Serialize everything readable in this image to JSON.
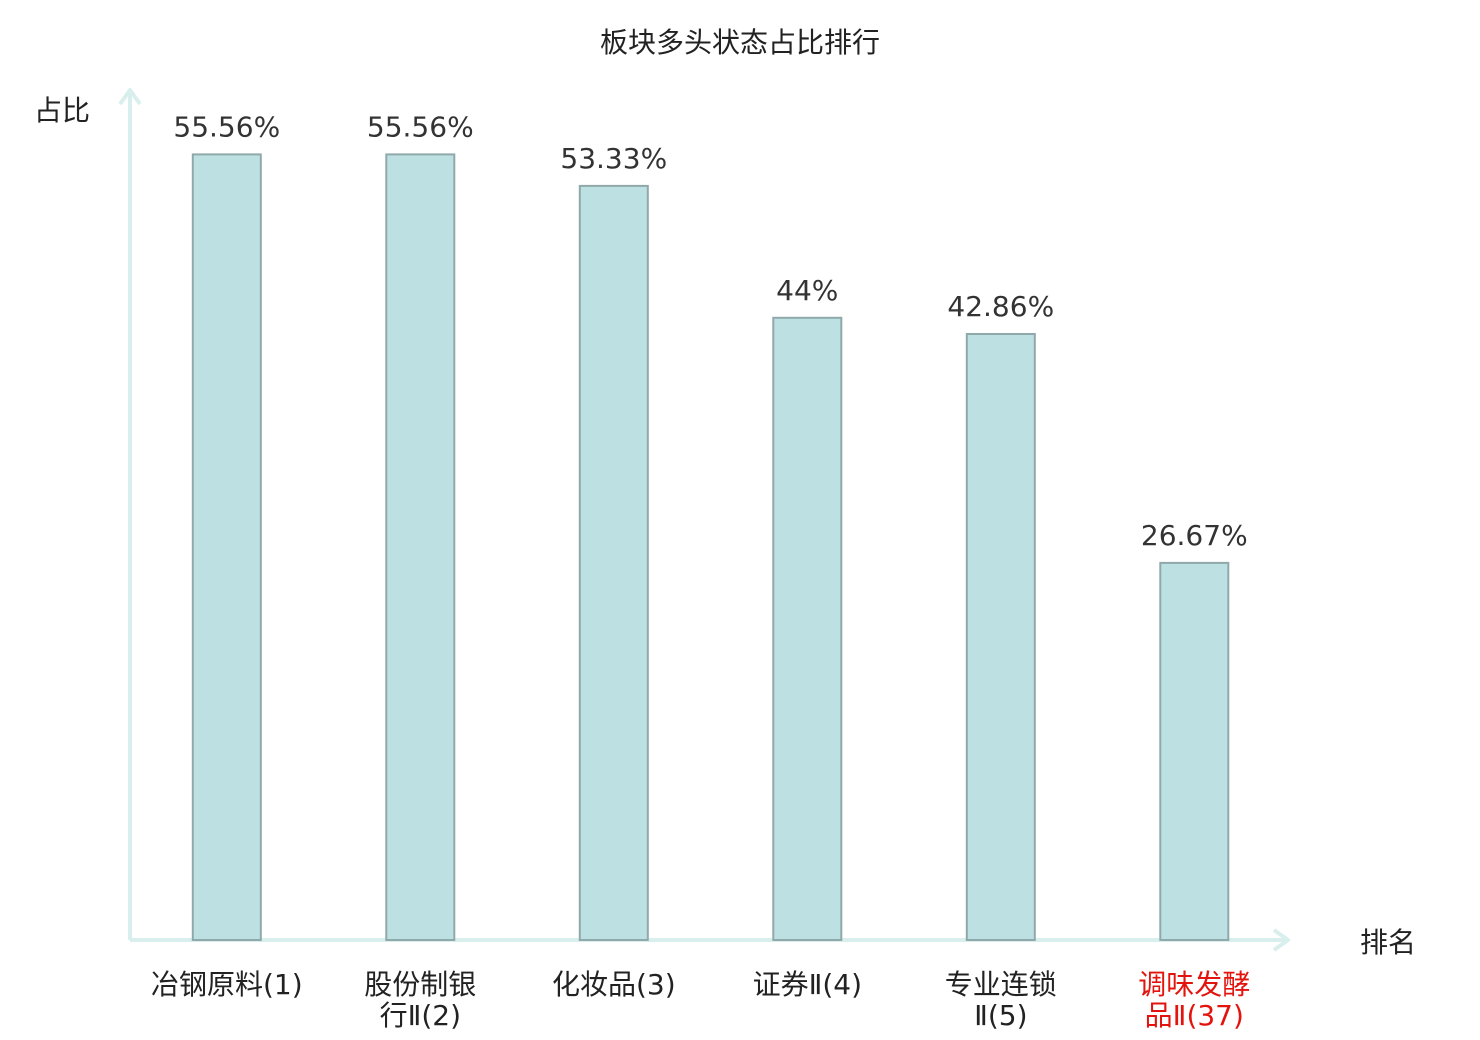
{
  "chart_data": {
    "type": "bar",
    "title": "板块多头状态占比排行",
    "ylabel": "占比",
    "xlabel": "排名",
    "ylim": [
      0,
      60
    ],
    "grid": false,
    "categories": [
      [
        "冶钢原料(1)"
      ],
      [
        "股份制银",
        "行Ⅱ(2)"
      ],
      [
        "化妆品(3)"
      ],
      [
        "证券Ⅱ(4)"
      ],
      [
        "专业连锁",
        "Ⅱ(5)"
      ],
      [
        "调味发酵",
        "品Ⅱ(37)"
      ]
    ],
    "values": [
      55.56,
      55.56,
      53.33,
      44,
      42.86,
      26.67
    ],
    "value_labels": [
      "55.56%",
      "55.56%",
      "53.33%",
      "44%",
      "42.86%",
      "26.67%"
    ],
    "highlight_index": 5,
    "colors": {
      "bar_fill": "#bde1e3",
      "bar_stroke": "#8fa9aa",
      "axis": "#d9efee",
      "category_text": "#222222",
      "highlight_text": "#e3140e"
    }
  }
}
